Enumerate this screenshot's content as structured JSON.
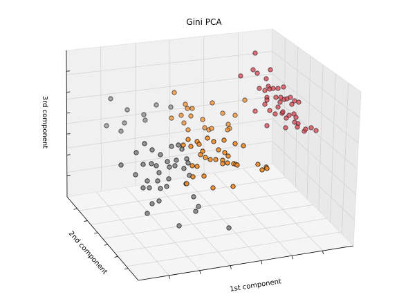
{
  "chart_data": {
    "type": "scatter",
    "projection": "3d",
    "title": "Gini PCA",
    "xlabel": "1st component",
    "ylabel": "2nd component",
    "zlabel": "3rd component",
    "grid": true,
    "legend": false,
    "series": [
      {
        "color": "#8c8c8c",
        "points": [
          [
            160,
            143
          ],
          [
            184,
            159
          ],
          [
            154,
            182
          ],
          [
            175,
            190
          ],
          [
            180,
            178
          ],
          [
            208,
            166
          ],
          [
            210,
            174
          ],
          [
            226,
            152
          ],
          [
            247,
            155
          ],
          [
            209,
            208
          ],
          [
            197,
            221
          ],
          [
            220,
            217
          ],
          [
            248,
            212
          ],
          [
            258,
            210
          ],
          [
            263,
            216
          ],
          [
            232,
            224
          ],
          [
            242,
            234
          ],
          [
            207,
            238
          ],
          [
            219,
            237
          ],
          [
            226,
            240
          ],
          [
            230,
            250
          ],
          [
            245,
            242
          ],
          [
            253,
            240
          ],
          [
            255,
            232
          ],
          [
            270,
            230
          ],
          [
            272,
            236
          ],
          [
            266,
            244
          ],
          [
            274,
            254
          ],
          [
            244,
            259
          ],
          [
            228,
            262
          ],
          [
            213,
            262
          ],
          [
            216,
            272
          ],
          [
            207,
            272
          ],
          [
            232,
            273
          ],
          [
            241,
            270
          ],
          [
            269,
            266
          ],
          [
            175,
            239
          ],
          [
            196,
            253
          ],
          [
            220,
            295
          ],
          [
            230,
            291
          ],
          [
            213,
            309
          ],
          [
            280,
            285
          ],
          [
            287,
            299
          ],
          [
            283,
            306
          ],
          [
            259,
            327
          ],
          [
            331,
            330
          ]
        ]
      },
      {
        "color": "#f28e2b",
        "points": [
          [
            252,
            134
          ],
          [
            268,
            151
          ],
          [
            271,
            157
          ],
          [
            278,
            157
          ],
          [
            262,
            167
          ],
          [
            276,
            168
          ],
          [
            248,
            171
          ],
          [
            266,
            178
          ],
          [
            272,
            188
          ],
          [
            293,
            173
          ],
          [
            307,
            149
          ],
          [
            322,
            164
          ],
          [
            340,
            167
          ],
          [
            330,
            180
          ],
          [
            354,
            145
          ],
          [
            296,
            185
          ],
          [
            302,
            188
          ],
          [
            306,
            186
          ],
          [
            332,
            186
          ],
          [
            329,
            188
          ],
          [
            285,
            205
          ],
          [
            288,
            209
          ],
          [
            300,
            200
          ],
          [
            309,
            205
          ],
          [
            324,
            203
          ],
          [
            340,
            208
          ],
          [
            352,
            211
          ],
          [
            272,
            202
          ],
          [
            265,
            210
          ],
          [
            276,
            212
          ],
          [
            293,
            219
          ],
          [
            290,
            224
          ],
          [
            297,
            228
          ],
          [
            316,
            217
          ],
          [
            325,
            221
          ],
          [
            330,
            226
          ],
          [
            322,
            232
          ],
          [
            329,
            236
          ],
          [
            312,
            231
          ],
          [
            304,
            231
          ],
          [
            285,
            241
          ],
          [
            322,
            237
          ],
          [
            338,
            237
          ],
          [
            341,
            238
          ],
          [
            343,
            239
          ],
          [
            373,
            238
          ],
          [
            385,
            242
          ],
          [
            379,
            246
          ],
          [
            386,
            244
          ],
          [
            278,
            240
          ],
          [
            295,
            255
          ],
          [
            279,
            256
          ],
          [
            270,
            266
          ],
          [
            337,
            270
          ],
          [
            308,
            272
          ]
        ]
      },
      {
        "color": "#d9434f",
        "points": [
          [
            369,
            77
          ],
          [
            366,
            101
          ],
          [
            348,
            110
          ],
          [
            372,
            106
          ],
          [
            391,
            101
          ],
          [
            385,
            114
          ],
          [
            388,
            125
          ],
          [
            375,
            128
          ],
          [
            383,
            131
          ],
          [
            390,
            129
          ],
          [
            386,
            141
          ],
          [
            395,
            128
          ],
          [
            402,
            128
          ],
          [
            410,
            126
          ],
          [
            399,
            141
          ],
          [
            406,
            141
          ],
          [
            405,
            148
          ],
          [
            411,
            144
          ],
          [
            415,
            143
          ],
          [
            420,
            141
          ],
          [
            426,
            146
          ],
          [
            422,
            151
          ],
          [
            432,
            148
          ],
          [
            408,
            164
          ],
          [
            398,
            165
          ],
          [
            390,
            160
          ],
          [
            369,
            161
          ],
          [
            386,
            145
          ],
          [
            383,
            151
          ],
          [
            402,
            155
          ],
          [
            409,
            162
          ],
          [
            414,
            171
          ],
          [
            418,
            167
          ],
          [
            425,
            165
          ],
          [
            428,
            170
          ],
          [
            431,
            179
          ],
          [
            426,
            177
          ],
          [
            430,
            184
          ],
          [
            440,
            190
          ],
          [
            442,
            187
          ],
          [
            450,
            185
          ],
          [
            457,
            189
          ],
          [
            413,
            185
          ],
          [
            386,
            182
          ]
        ]
      }
    ]
  }
}
